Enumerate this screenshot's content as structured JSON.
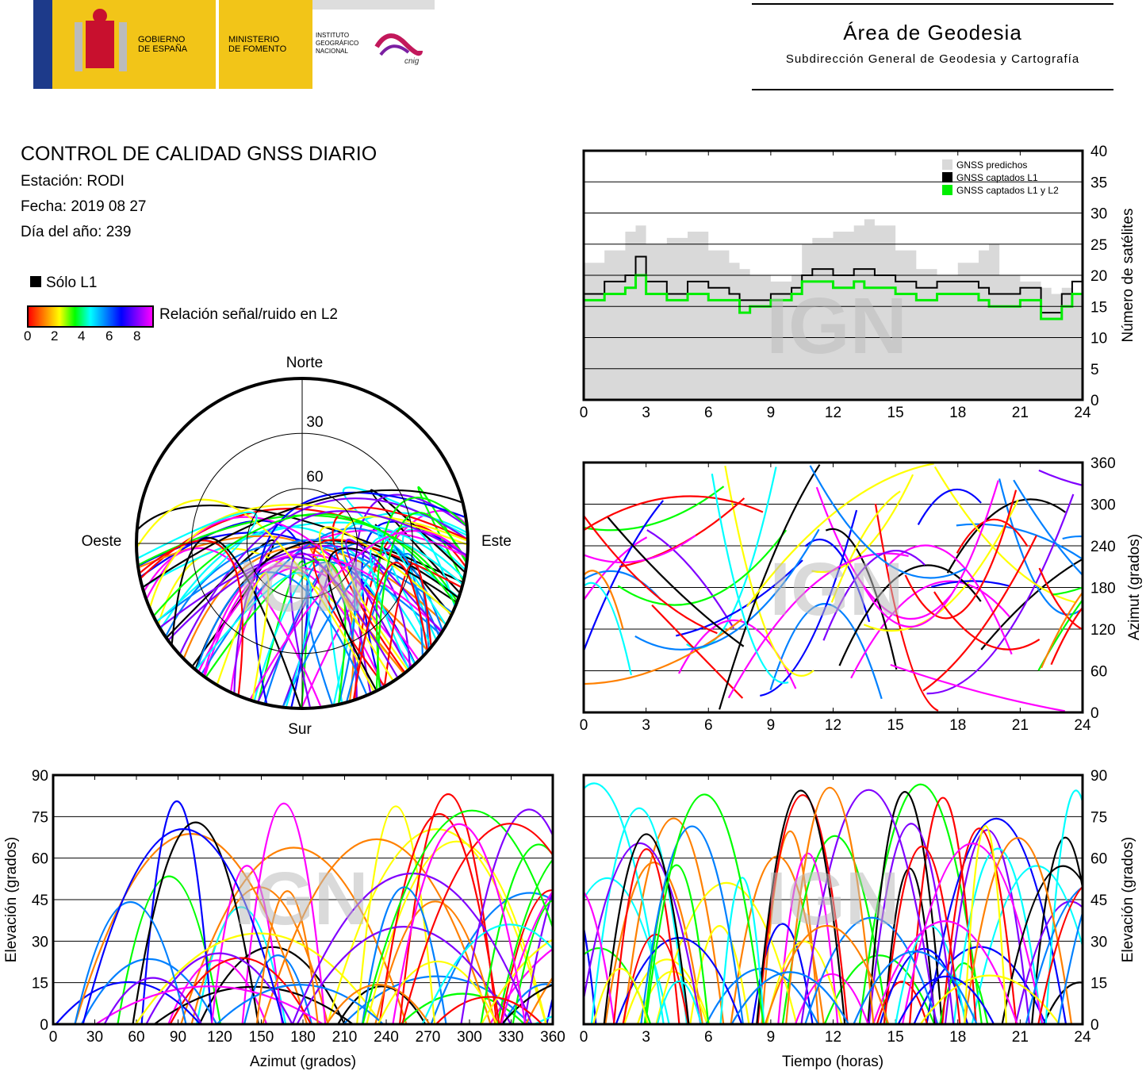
{
  "header": {
    "logo_gobierno": "GOBIERNO\nDE ESPAÑA",
    "logo_ministerio": "MINISTERIO\nDE FOMENTO",
    "logo_instituto": "INSTITUTO\nGEOGRÁFICO\nNACIONAL",
    "logo_cnig": "cnig",
    "area_title": "Área de Geodesia",
    "area_subtitle": "Subdirección General de Geodesia y Cartografía"
  },
  "info": {
    "title": "CONTROL DE CALIDAD GNSS DIARIO",
    "station": "Estación: RODI",
    "date": "Fecha: 2019 08 27",
    "doy": "Día del año: 239"
  },
  "legend": {
    "l1_only": "Sólo L1",
    "snr_label": "Relación señal/ruido en L2",
    "snr_ticks": [
      "0",
      "2",
      "4",
      "6",
      "8"
    ]
  },
  "watermark": "IGN",
  "colors": {
    "predicted": "#d9d9d9",
    "l1": "#000000",
    "l1l2": "#00ee00",
    "snr_scale": [
      "#ff0000",
      "#ff8000",
      "#ffff00",
      "#00ff00",
      "#00ffff",
      "#0080ff",
      "#0000ff",
      "#8000ff",
      "#ff00ff"
    ]
  },
  "chart_data": [
    {
      "id": "sat-count",
      "type": "area",
      "ylabel": "Número de satélites",
      "xlim": [
        0,
        24
      ],
      "ylim": [
        0,
        40
      ],
      "xticks": [
        "0",
        "3",
        "6",
        "9",
        "12",
        "15",
        "18",
        "21",
        "24"
      ],
      "yticks": [
        "0",
        "5",
        "10",
        "15",
        "20",
        "25",
        "30",
        "35",
        "40"
      ],
      "grid": true,
      "legend_position": "top-right",
      "series": [
        {
          "name": "GNSS predichos",
          "x": [
            0,
            1,
            2,
            2.5,
            3,
            4,
            5,
            6,
            7,
            7.5,
            8,
            9,
            10,
            10.5,
            11,
            12,
            13,
            13.5,
            14,
            15,
            16,
            17,
            18,
            19,
            19.5,
            20,
            21,
            22,
            22.5,
            23,
            23.5,
            24
          ],
          "values": [
            22,
            24,
            27,
            28,
            25,
            26,
            27,
            24,
            22,
            21,
            20,
            19,
            20,
            25,
            26,
            27,
            28,
            29,
            28,
            24,
            21,
            20,
            22,
            24,
            25,
            20,
            19,
            18,
            17,
            18,
            17,
            17
          ]
        },
        {
          "name": "GNSS captados L1",
          "x": [
            0,
            1,
            2,
            2.5,
            3,
            4,
            5,
            6,
            7,
            7.5,
            8,
            9,
            10,
            10.5,
            11,
            12,
            13,
            13.5,
            14,
            15,
            16,
            17,
            18,
            19,
            19.5,
            20,
            21,
            22,
            22.5,
            23,
            23.5,
            24
          ],
          "values": [
            17,
            19,
            20,
            23,
            19,
            17,
            19,
            18,
            17,
            16,
            16,
            17,
            18,
            20,
            21,
            20,
            21,
            21,
            20,
            19,
            18,
            19,
            19,
            18,
            17,
            17,
            18,
            14,
            14,
            17,
            19,
            16
          ]
        },
        {
          "name": "GNSS captados L1 y L2",
          "x": [
            0,
            1,
            2,
            2.5,
            3,
            4,
            5,
            6,
            7,
            7.5,
            8,
            9,
            10,
            10.5,
            11,
            12,
            13,
            13.5,
            14,
            15,
            16,
            17,
            18,
            19,
            19.5,
            20,
            21,
            22,
            22.5,
            23,
            23.5,
            24
          ],
          "values": [
            16,
            17,
            18,
            20,
            17,
            16,
            17,
            16,
            16,
            14,
            15,
            16,
            17,
            19,
            19,
            18,
            19,
            18,
            18,
            17,
            16,
            17,
            17,
            16,
            15,
            15,
            16,
            13,
            13,
            15,
            17,
            15
          ]
        }
      ]
    },
    {
      "id": "skyplot",
      "type": "scatter",
      "labels": {
        "north": "Norte",
        "south": "Sur",
        "west": "Oeste",
        "east": "Este"
      },
      "rings": [
        "30",
        "60"
      ]
    },
    {
      "id": "azimuth-time",
      "type": "scatter",
      "ylabel": "Azimut (grados)",
      "xlim": [
        0,
        24
      ],
      "ylim": [
        0,
        360
      ],
      "xticks": [
        "0",
        "3",
        "6",
        "9",
        "12",
        "15",
        "18",
        "21",
        "24"
      ],
      "yticks": [
        "0",
        "60",
        "120",
        "180",
        "240",
        "300",
        "360"
      ]
    },
    {
      "id": "elev-azimuth",
      "type": "scatter",
      "xlabel": "Azimut (grados)",
      "ylabel": "Elevación (grados)",
      "xlim": [
        0,
        360
      ],
      "ylim": [
        0,
        90
      ],
      "xticks": [
        "0",
        "30",
        "60",
        "90",
        "120",
        "150",
        "180",
        "210",
        "240",
        "270",
        "300",
        "330",
        "360"
      ],
      "yticks": [
        "0",
        "15",
        "30",
        "45",
        "60",
        "75",
        "90"
      ]
    },
    {
      "id": "elev-time",
      "type": "scatter",
      "xlabel": "Tiempo (horas)",
      "ylabel": "Elevación (grados)",
      "xlim": [
        0,
        24
      ],
      "ylim": [
        0,
        90
      ],
      "xticks": [
        "0",
        "3",
        "6",
        "9",
        "12",
        "15",
        "18",
        "21",
        "24"
      ],
      "yticks": [
        "0",
        "15",
        "30",
        "45",
        "60",
        "75",
        "90"
      ]
    }
  ]
}
